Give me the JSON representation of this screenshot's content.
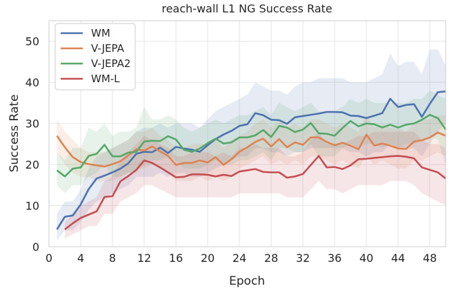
{
  "chart_data": {
    "type": "line",
    "title": "reach-wall L1 NG Success Rate",
    "xlabel": "Epoch",
    "ylabel": "Success Rate",
    "xlim": [
      0,
      50
    ],
    "ylim": [
      0,
      55
    ],
    "xticks": [
      0,
      4,
      8,
      12,
      16,
      20,
      24,
      28,
      32,
      36,
      40,
      44,
      48
    ],
    "yticks": [
      0,
      10,
      20,
      30,
      40,
      50
    ],
    "grid": true,
    "legend": "top-left",
    "series": [
      {
        "name": "WM",
        "color": "#4c72b0",
        "x": [
          1,
          2,
          3,
          4,
          5,
          6,
          7,
          8,
          9,
          10,
          11,
          12,
          13,
          14,
          15,
          16,
          17,
          18,
          19,
          20,
          21,
          22,
          23,
          24,
          25,
          26,
          27,
          28,
          29,
          30,
          31,
          32,
          33,
          34,
          35,
          36,
          37,
          38,
          39,
          40,
          41,
          42,
          43,
          44,
          45,
          46,
          47,
          48,
          49,
          50
        ],
        "y": [
          4.2,
          7.3,
          7.6,
          10.3,
          14,
          16.6,
          17.3,
          18.1,
          19,
          20.3,
          22.6,
          23.1,
          23,
          24.1,
          22.8,
          24.3,
          23.9,
          23.6,
          23.1,
          24.7,
          26.2,
          27.3,
          28.2,
          29.4,
          29.8,
          32.5,
          32,
          30.9,
          30.8,
          29.9,
          31.5,
          31.8,
          32.1,
          32.4,
          32.8,
          32.8,
          32.7,
          31.9,
          31.8,
          31.3,
          31.9,
          32.5,
          36,
          34,
          34.5,
          34.7,
          31.6,
          34.8,
          37.6,
          37.8
        ],
        "lower": [
          1.5,
          4,
          4,
          6,
          9,
          11,
          12,
          13,
          14,
          15,
          17,
          17,
          17,
          18,
          17,
          18,
          18,
          17,
          17,
          18,
          19,
          20,
          21,
          22,
          22,
          24,
          24,
          23,
          23,
          22,
          23,
          23,
          24,
          24,
          24,
          24,
          24,
          23,
          23,
          22,
          23,
          23,
          25,
          24,
          24,
          24,
          22,
          25,
          28,
          30
        ],
        "upper": [
          8,
          11,
          11,
          14,
          19,
          22,
          23,
          24,
          25,
          26,
          28,
          29,
          29,
          30,
          29,
          30,
          30,
          30,
          29,
          31,
          33,
          34,
          35,
          36,
          37,
          40,
          39,
          38,
          38,
          37,
          39,
          40,
          40,
          41,
          41,
          41,
          41,
          40,
          40,
          40,
          41,
          42,
          47,
          44,
          45,
          45,
          42,
          48,
          48,
          44
        ]
      },
      {
        "name": "V-JEPA",
        "color": "#dd8452",
        "x": [
          1,
          2,
          3,
          4,
          5,
          6,
          7,
          8,
          9,
          10,
          11,
          12,
          13,
          14,
          15,
          16,
          17,
          18,
          19,
          20,
          21,
          22,
          23,
          24,
          25,
          26,
          27,
          28,
          29,
          30,
          31,
          32,
          33,
          34,
          35,
          36,
          37,
          38,
          39,
          40,
          41,
          42,
          43,
          44,
          45,
          46,
          47,
          48,
          49,
          50
        ],
        "y": [
          27,
          24.2,
          21.8,
          20.6,
          20.1,
          19.8,
          19.5,
          20.1,
          20.8,
          22.2,
          23.7,
          23.4,
          24.4,
          23.2,
          22.1,
          19.9,
          20.4,
          20.4,
          21,
          20.5,
          21.8,
          19.9,
          21.3,
          23.1,
          24.2,
          25.5,
          26.3,
          24.4,
          26.2,
          24.2,
          25.4,
          24.8,
          26.6,
          26.6,
          25.5,
          24.7,
          25.3,
          24.6,
          23.7,
          27.3,
          24.6,
          25.1,
          24.6,
          23.9,
          23.8,
          25.6,
          25.9,
          26.6,
          27.8,
          27
        ],
        "lower": [
          23,
          20,
          18,
          17,
          17,
          16,
          16,
          16,
          17,
          18,
          19,
          19,
          20,
          19,
          18,
          16,
          16,
          16,
          17,
          16,
          17,
          16,
          17,
          19,
          20,
          21,
          22,
          20,
          21,
          20,
          21,
          20,
          22,
          22,
          21,
          20,
          21,
          20,
          19,
          22,
          20,
          21,
          20,
          19,
          19,
          21,
          21,
          22,
          23,
          22
        ],
        "upper": [
          31,
          28,
          26,
          24,
          23,
          23,
          23,
          24,
          25,
          26,
          28,
          28,
          29,
          27,
          26,
          24,
          24,
          25,
          25,
          25,
          26,
          24,
          26,
          27,
          28,
          30,
          31,
          29,
          31,
          29,
          30,
          29,
          31,
          31,
          30,
          29,
          30,
          29,
          28,
          32,
          29,
          30,
          29,
          29,
          28,
          30,
          31,
          31,
          32,
          32
        ]
      },
      {
        "name": "V-JEPA2",
        "color": "#55a868",
        "x": [
          1,
          2,
          3,
          4,
          5,
          6,
          7,
          8,
          9,
          10,
          11,
          12,
          13,
          14,
          15,
          16,
          17,
          18,
          19,
          20,
          21,
          22,
          23,
          24,
          25,
          26,
          27,
          28,
          29,
          30,
          31,
          32,
          33,
          34,
          35,
          36,
          37,
          38,
          39,
          40,
          41,
          42,
          43,
          44,
          45,
          46,
          47,
          48,
          49,
          50
        ],
        "y": [
          18.6,
          17.1,
          19,
          19.3,
          22.1,
          22.6,
          24.8,
          22,
          22,
          22.9,
          23.1,
          25.6,
          25.8,
          25.7,
          26.9,
          26.1,
          23.6,
          23.1,
          23.9,
          25.2,
          26.3,
          25.1,
          25.4,
          26.6,
          26.6,
          27.1,
          28.4,
          26.7,
          29.4,
          29,
          27.9,
          28.5,
          30.1,
          27.6,
          27.5,
          27,
          28.9,
          30.6,
          29.3,
          30,
          29.8,
          29,
          29.7,
          29,
          29.7,
          30,
          30.9,
          32.1,
          31.3,
          28.5
        ],
        "lower": [
          15,
          13,
          15,
          15,
          17,
          18,
          20,
          17,
          17,
          18,
          18,
          20,
          21,
          21,
          22,
          21,
          19,
          19,
          19,
          20,
          21,
          20,
          20,
          21,
          21,
          22,
          23,
          21,
          24,
          24,
          23,
          23,
          25,
          22,
          22,
          22,
          24,
          25,
          24,
          25,
          25,
          24,
          25,
          24,
          25,
          25,
          26,
          27,
          26,
          20
        ],
        "upper": [
          23,
          21,
          24,
          24,
          29,
          28,
          30,
          27,
          28,
          28,
          29,
          34,
          31,
          31,
          32,
          31,
          29,
          28,
          29,
          30,
          31,
          30,
          31,
          32,
          32,
          33,
          34,
          32,
          35,
          34,
          33,
          34,
          35,
          33,
          33,
          33,
          34,
          36,
          35,
          36,
          35,
          35,
          35,
          35,
          35,
          36,
          36,
          38,
          37,
          36
        ]
      },
      {
        "name": "WM-L",
        "color": "#c44e52",
        "x": [
          2,
          3,
          4,
          5,
          6,
          7,
          8,
          9,
          10,
          11,
          12,
          13,
          14,
          15,
          16,
          17,
          18,
          19,
          20,
          21,
          22,
          23,
          24,
          25,
          26,
          27,
          28,
          29,
          30,
          31,
          32,
          33,
          34,
          35,
          36,
          37,
          38,
          39,
          40,
          41,
          42,
          43,
          44,
          45,
          46,
          47,
          48,
          49,
          50
        ],
        "y": [
          4.2,
          5.7,
          7,
          7.8,
          8.6,
          12.1,
          12.3,
          15.9,
          17.2,
          18.7,
          21,
          20.4,
          19.3,
          18.1,
          16.9,
          17,
          17.6,
          17.6,
          17.5,
          17.1,
          17.5,
          17.2,
          18.3,
          18.6,
          18.9,
          18.2,
          18.1,
          18.1,
          16.8,
          17.1,
          17.7,
          19.9,
          22.1,
          19.3,
          19.4,
          18.9,
          19.8,
          21.3,
          21.4,
          21.6,
          21.8,
          22,
          22.1,
          21.9,
          21.5,
          19.3,
          18.7,
          18.1,
          16.6
        ],
        "lower": [
          2,
          3,
          4,
          5,
          5,
          8,
          8,
          11,
          12,
          13,
          15,
          15,
          14,
          13,
          12,
          12,
          12,
          12,
          12,
          12,
          12,
          12,
          13,
          13,
          13,
          13,
          13,
          13,
          12,
          12,
          12,
          14,
          16,
          14,
          14,
          13,
          14,
          15,
          15,
          15,
          15,
          16,
          16,
          16,
          15,
          13,
          12,
          11,
          10
        ],
        "upper": [
          6,
          8,
          10,
          11,
          12,
          16,
          17,
          21,
          23,
          25,
          27,
          26,
          25,
          24,
          22,
          22,
          23,
          23,
          23,
          22,
          23,
          22,
          24,
          24,
          25,
          24,
          24,
          24,
          22,
          22,
          23,
          26,
          28,
          25,
          25,
          25,
          26,
          27,
          27,
          28,
          28,
          28,
          28,
          28,
          28,
          26,
          25,
          25,
          24
        ]
      }
    ]
  }
}
